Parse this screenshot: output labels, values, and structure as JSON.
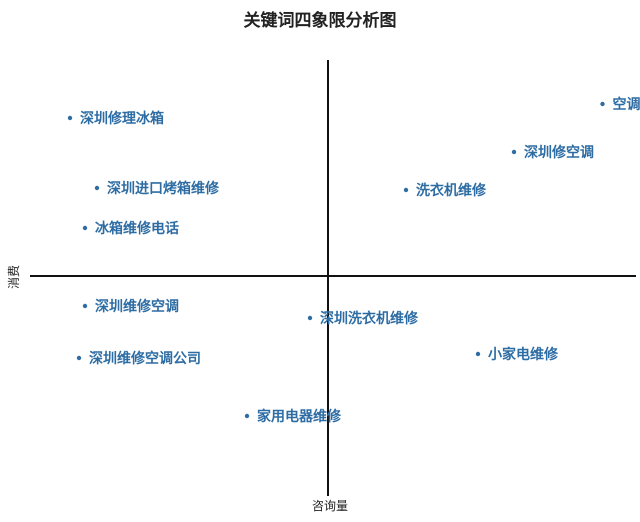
{
  "chart_data": {
    "type": "scatter",
    "title": "关键词四象限分析图",
    "xlabel": "咨询量",
    "ylabel": "消费",
    "color": "#2e6da4",
    "grid": false,
    "points": [
      {
        "label": "空调维修",
        "x": 0.915,
        "y": 0.86
      },
      {
        "label": "深圳修空调",
        "x": 0.62,
        "y": 0.62
      },
      {
        "label": "洗衣机维修",
        "x": 0.26,
        "y": 0.43
      },
      {
        "label": "深圳修理冰箱",
        "x": -0.86,
        "y": 0.79
      },
      {
        "label": "深圳进口烤箱维修",
        "x": -0.77,
        "y": 0.44
      },
      {
        "label": "冰箱维修电话",
        "x": -0.81,
        "y": 0.24
      },
      {
        "label": "深圳维修空调",
        "x": -0.81,
        "y": -0.15
      },
      {
        "label": "深圳维修空调公司",
        "x": -0.83,
        "y": -0.41
      },
      {
        "label": "深圳洗衣机维修",
        "x": -0.06,
        "y": -0.21
      },
      {
        "label": "小家电维修",
        "x": 0.5,
        "y": -0.39
      },
      {
        "label": "家用电器维修",
        "x": -0.27,
        "y": -0.7
      }
    ]
  }
}
